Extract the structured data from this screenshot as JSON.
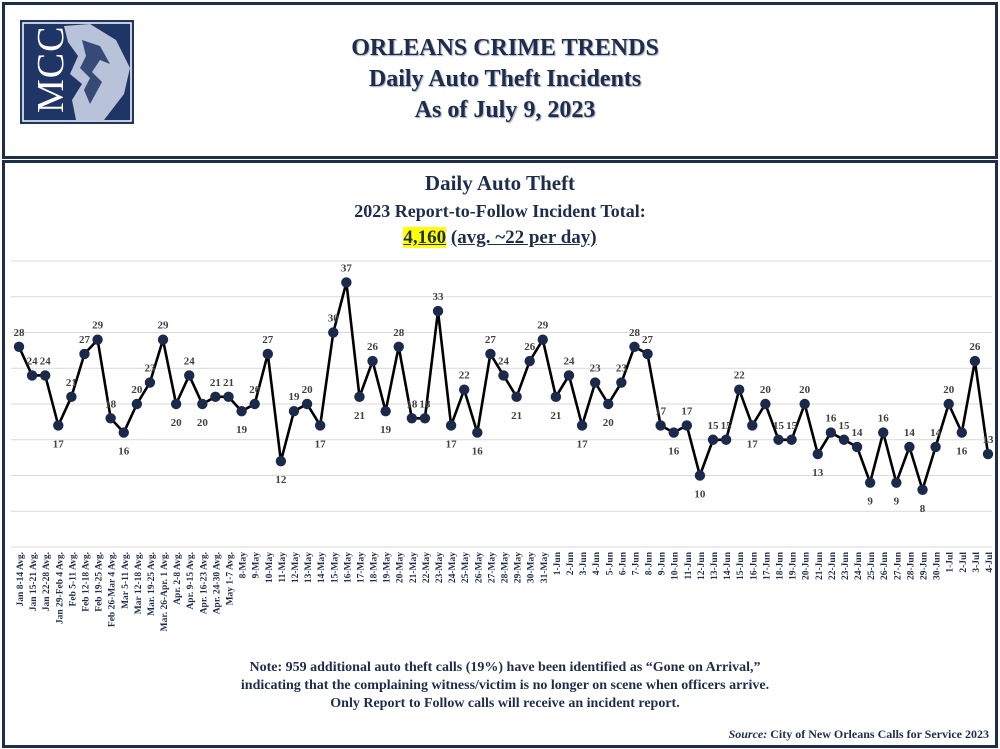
{
  "header": {
    "logo_text": "MCC",
    "line1": "ORLEANS CRIME TRENDS",
    "line2": "Daily Auto Theft Incidents",
    "line3": "As of July 9, 2023"
  },
  "chart_title": {
    "line1": "Daily Auto Theft",
    "line2": "2023 Report-to-Follow Incident Total:",
    "total": "4,160",
    "avg": "(avg. ~22 per day)"
  },
  "note": "Note: 959 additional auto theft calls (19%) have been identified as “Gone on Arrival,” indicating that the complaining witness/victim is no longer on scene when officers arrive.  Only Report to Follow calls will receive an incident report.",
  "source": {
    "label": "Source:",
    "text": "City of New Orleans Calls for Service 2023"
  },
  "colors": {
    "navy": "#1f2d4d",
    "marker": "#1b2a4a",
    "highlight": "#ffff00",
    "grid": "#d9d9d9"
  },
  "chart_data": {
    "type": "line",
    "title": "Daily Auto Theft",
    "ylim": [
      0,
      40
    ],
    "grid": true,
    "categories": [
      "Jan 8-14 Avg.",
      "Jan 15-21 Avg.",
      "Jan 22-28 Avg.",
      "Jan 29-Feb 4 Avg.",
      "Feb 5-11 Avg.",
      "Feb 12-18 Avg.",
      "Feb 19-25 Avg.",
      "Feb 26-Mar 4 Avg.",
      "Mar 5-11 Avg.",
      "Mar 12-18 Avg.",
      "Mar. 19-25 Avg.",
      "Mar. 26-Apr. 1 Avg.",
      "Apr. 2-8 Avg.",
      "Apr. 9-15 Avg.",
      "Apr. 16-23 Avg.",
      "Apr. 24-30 Avg.",
      "May 1-7 Avg.",
      "8-May",
      "9-May",
      "10-May",
      "11-May",
      "12-May",
      "13-May",
      "14-May",
      "15-May",
      "16-May",
      "17-May",
      "18-May",
      "19-May",
      "20-May",
      "21-May",
      "22-May",
      "23-May",
      "24-May",
      "25-May",
      "26-May",
      "27-May",
      "28-May",
      "29-May",
      "30-May",
      "31-May",
      "1-Jun",
      "2-Jun",
      "3-Jun",
      "4-Jun",
      "5-Jun",
      "6-Jun",
      "7-Jun",
      "8-Jun",
      "9-Jun",
      "10-Jun",
      "11-Jun",
      "12-Jun",
      "13-Jun",
      "14-Jun",
      "15-Jun",
      "16-Jun",
      "17-Jun",
      "18-Jun",
      "19-Jun",
      "20-Jun",
      "21-Jun",
      "22-Jun",
      "23-Jun",
      "24-Jun",
      "25-Jun",
      "26-Jun",
      "27-Jun",
      "28-Jun",
      "29-Jun",
      "30-Jun",
      "1-Jul",
      "2-Jul",
      "3-Jul",
      "4-Jul"
    ],
    "values": [
      28,
      24,
      24,
      17,
      21,
      27,
      29,
      18,
      16,
      20,
      23,
      29,
      20,
      24,
      20,
      21,
      21,
      19,
      20,
      27,
      12,
      19,
      20,
      17,
      30,
      37,
      21,
      26,
      19,
      28,
      18,
      18,
      33,
      17,
      22,
      16,
      27,
      24,
      21,
      26,
      29,
      21,
      24,
      17,
      23,
      20,
      23,
      28,
      27,
      17,
      16,
      17,
      10,
      15,
      15,
      22,
      17,
      20,
      15,
      15,
      20,
      13,
      16,
      15,
      14,
      9,
      16,
      9,
      14,
      8,
      14,
      20,
      16,
      26,
      13
    ],
    "labels": [
      "28",
      "24",
      "24",
      "17",
      "21",
      "27",
      "29",
      "18",
      "16",
      "20",
      "23",
      "29",
      "20",
      "24",
      "20",
      "21",
      "21",
      "19",
      "20",
      "27",
      "12",
      "19",
      "20",
      "17",
      "30",
      "37",
      "21",
      "26",
      "19",
      "28",
      "18",
      "18",
      "33",
      "17",
      "22",
      "16",
      "27",
      "24",
      "21",
      "26",
      "29",
      "21",
      "24",
      "17",
      "23",
      "20",
      "23",
      "28",
      "27",
      "17",
      "16",
      "17",
      "10",
      "15",
      "15",
      "22",
      "17",
      "20",
      "15",
      "15",
      "20",
      "13",
      "16",
      "15",
      "14",
      "9",
      "16",
      "9",
      "14",
      "8",
      "14",
      "20",
      "16",
      "26",
      "13"
    ]
  }
}
